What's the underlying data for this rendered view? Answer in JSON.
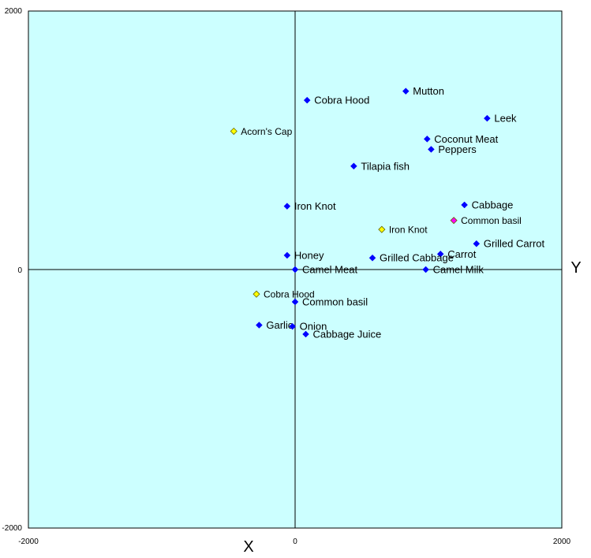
{
  "chart_data": {
    "type": "scatter",
    "title": "",
    "xlabel": "X",
    "ylabel": "Y",
    "xlim": [
      -2000,
      2000
    ],
    "ylim": [
      -2000,
      2000
    ],
    "x_ticks": [
      "-2000",
      "0",
      "2000"
    ],
    "y_ticks": [
      "2000",
      "0",
      "-2000"
    ],
    "grid": false,
    "legend": "none",
    "colors": {
      "background": "#ccffff",
      "blue": "#0000ff",
      "yellow": "#ffff00",
      "magenta": "#ff00ff"
    },
    "points": [
      {
        "label": "Mutton",
        "x": 830,
        "y": 1380,
        "color": "blue"
      },
      {
        "label": "Cobra Hood",
        "x": 90,
        "y": 1310,
        "color": "blue"
      },
      {
        "label": "Leek",
        "x": 1440,
        "y": 1170,
        "color": "blue"
      },
      {
        "label": "Acorn's Cap",
        "x": -460,
        "y": 1070,
        "color": "yellow"
      },
      {
        "label": "Coconut Meat",
        "x": 990,
        "y": 1010,
        "color": "blue"
      },
      {
        "label": "Peppers",
        "x": 1020,
        "y": 930,
        "color": "blue"
      },
      {
        "label": "Tilapia fish",
        "x": 440,
        "y": 800,
        "color": "blue"
      },
      {
        "label": "Iron Knot",
        "x": -60,
        "y": 490,
        "color": "blue"
      },
      {
        "label": "Cabbage",
        "x": 1270,
        "y": 500,
        "color": "blue"
      },
      {
        "label": "Common basil",
        "x": 1190,
        "y": 380,
        "color": "magenta"
      },
      {
        "label": "Iron Knot",
        "x": 650,
        "y": 310,
        "color": "yellow"
      },
      {
        "label": "Grilled Carrot",
        "x": 1360,
        "y": 200,
        "color": "blue"
      },
      {
        "label": "Carrot",
        "x": 1090,
        "y": 120,
        "color": "blue"
      },
      {
        "label": "Honey",
        "x": -60,
        "y": 110,
        "color": "blue"
      },
      {
        "label": "Grilled Cabbage",
        "x": 580,
        "y": 90,
        "color": "blue"
      },
      {
        "label": "Camel Meat",
        "x": 0,
        "y": 0,
        "color": "blue"
      },
      {
        "label": "Camel Milk",
        "x": 980,
        "y": 0,
        "color": "blue"
      },
      {
        "label": "Cobra Hood",
        "x": -290,
        "y": -190,
        "color": "yellow"
      },
      {
        "label": "Common basil",
        "x": 0,
        "y": -250,
        "color": "blue"
      },
      {
        "label": "Garlic",
        "x": -270,
        "y": -430,
        "color": "blue"
      },
      {
        "label": "Onion",
        "x": -20,
        "y": -440,
        "color": "blue"
      },
      {
        "label": "Cabbage Juice",
        "x": 80,
        "y": -500,
        "color": "blue"
      }
    ]
  }
}
